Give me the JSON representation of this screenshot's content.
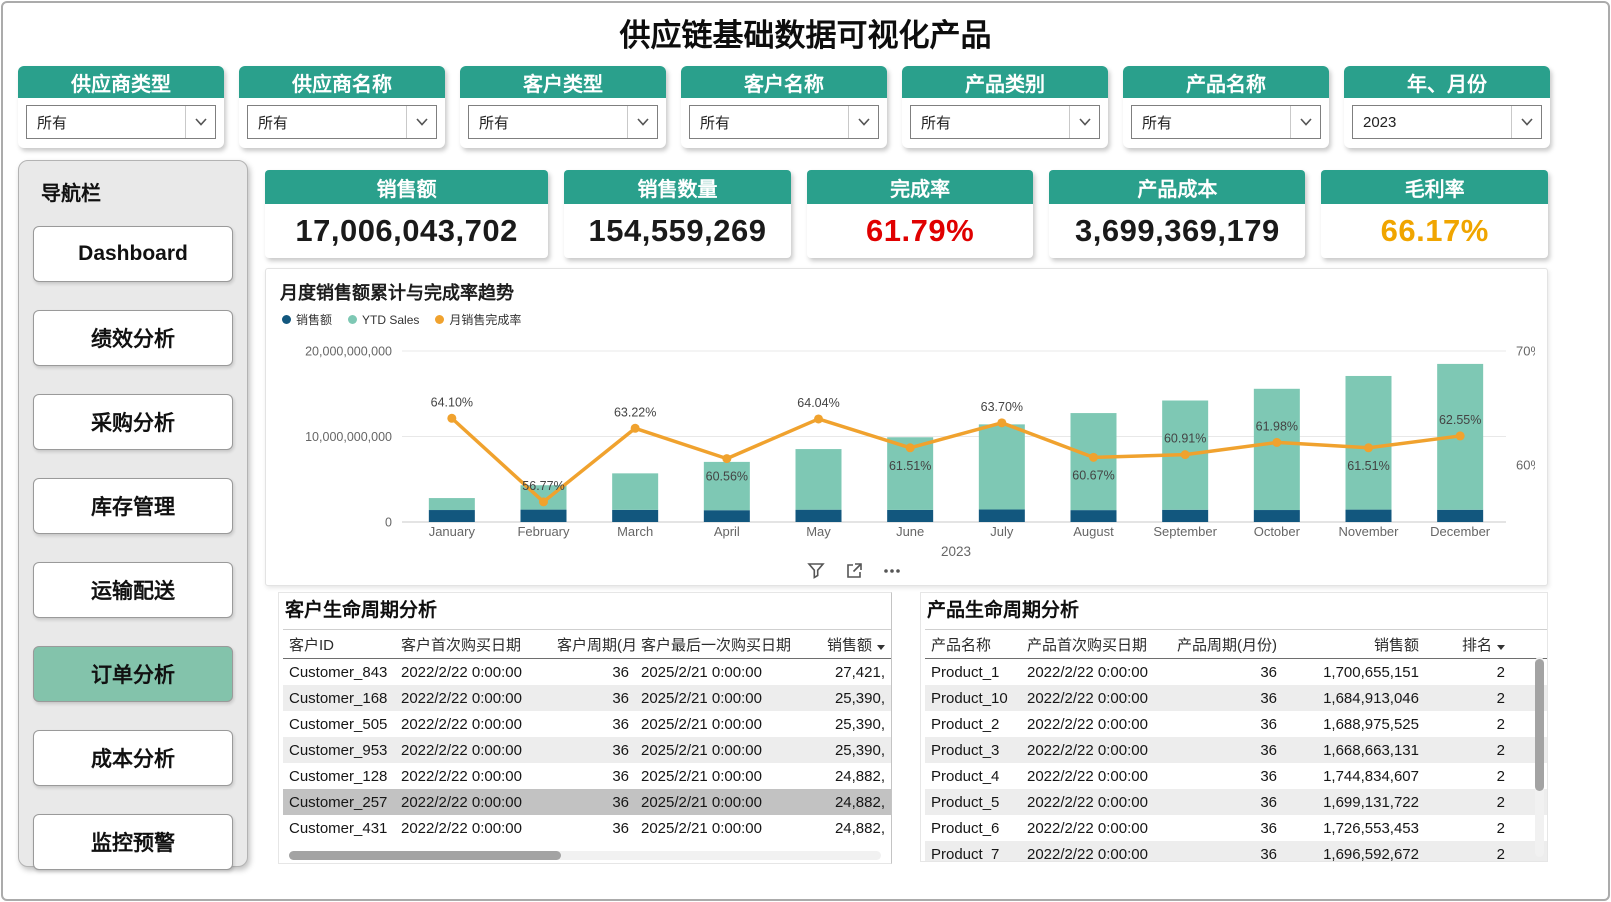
{
  "page": {
    "title": "供应链基础数据可视化产品"
  },
  "colors": {
    "teal_header": "#2AA08C",
    "nav_selected": "#83C3AB",
    "bar_blue": "#12577E",
    "bar_teal": "#7EC8B4",
    "line_orange": "#F0A22E",
    "kpi_red": "#E00000",
    "kpi_amber": "#F0A500",
    "row_alt": "#EDEDED",
    "row_selected": "#C2C2C2"
  },
  "filters": [
    {
      "name": "supplier-type",
      "label": "供应商类型",
      "value": "所有"
    },
    {
      "name": "supplier-name",
      "label": "供应商名称",
      "value": "所有"
    },
    {
      "name": "customer-type",
      "label": "客户类型",
      "value": "所有"
    },
    {
      "name": "customer-name",
      "label": "客户名称",
      "value": "所有"
    },
    {
      "name": "product-category",
      "label": "产品类别",
      "value": "所有"
    },
    {
      "name": "product-name",
      "label": "产品名称",
      "value": "所有"
    },
    {
      "name": "year-month",
      "label": "年、月份",
      "value": "2023"
    }
  ],
  "sidebar": {
    "title": "导航栏",
    "items": [
      {
        "name": "dashboard",
        "label": "Dashboard",
        "selected": false
      },
      {
        "name": "performance-analysis",
        "label": "绩效分析",
        "selected": false
      },
      {
        "name": "procurement-analysis",
        "label": "采购分析",
        "selected": false
      },
      {
        "name": "inventory-management",
        "label": "库存管理",
        "selected": false
      },
      {
        "name": "transport-delivery",
        "label": "运输配送",
        "selected": false
      },
      {
        "name": "order-analysis",
        "label": "订单分析",
        "selected": true
      },
      {
        "name": "cost-analysis",
        "label": "成本分析",
        "selected": false
      },
      {
        "name": "monitoring-alerts",
        "label": "监控预警",
        "selected": false
      }
    ]
  },
  "kpis": [
    {
      "name": "sales",
      "label": "销售额",
      "value": "17,006,043,702",
      "value_color": "#1a1a1a"
    },
    {
      "name": "sales-quantity",
      "label": "销售数量",
      "value": "154,559,269",
      "value_color": "#1a1a1a"
    },
    {
      "name": "completion-rate",
      "label": "完成率",
      "value": "61.79%",
      "value_color": "#E00000"
    },
    {
      "name": "product-cost",
      "label": "产品成本",
      "value": "3,699,369,179",
      "value_color": "#1a1a1a"
    },
    {
      "name": "gross-margin",
      "label": "毛利率",
      "value": "66.17%",
      "value_color": "#F0A500"
    }
  ],
  "chart_data": {
    "type": "combo",
    "title": "月度销售额累计与完成率趋势",
    "legend": [
      {
        "label": "销售额",
        "color": "#12577E"
      },
      {
        "label": "YTD Sales",
        "color": "#7EC8B4"
      },
      {
        "label": "月销售完成率",
        "color": "#F0A22E"
      }
    ],
    "categories": [
      "January",
      "February",
      "March",
      "April",
      "May",
      "June",
      "July",
      "August",
      "September",
      "October",
      "November",
      "December"
    ],
    "x_footer": "2023",
    "bar_series": [
      {
        "name": "销售额",
        "color": "#12577E",
        "values": [
          1400000000,
          1450000000,
          1420000000,
          1380000000,
          1440000000,
          1410000000,
          1460000000,
          1390000000,
          1430000000,
          1400000000,
          1450000000,
          1430000000
        ]
      },
      {
        "name": "YTD Sales",
        "color": "#7EC8B4",
        "values": [
          1400000000,
          2850000000,
          4270000000,
          5650000000,
          7090000000,
          8500000000,
          9960000000,
          11350000000,
          12780000000,
          14180000000,
          15630000000,
          17060000000
        ]
      }
    ],
    "line_series": {
      "name": "月销售完成率",
      "color": "#F0A22E",
      "values": [
        64.1,
        56.77,
        63.22,
        60.56,
        64.04,
        61.51,
        63.7,
        60.67,
        60.91,
        61.98,
        61.51,
        62.55
      ],
      "labels": [
        "64.10%",
        "56.77%",
        "63.22%",
        "60.56%",
        "64.04%",
        "61.51%",
        "63.70%",
        "60.67%",
        "60.91%",
        "61.98%",
        "61.51%",
        "62.55%"
      ],
      "label_side": [
        "above",
        "above",
        "above",
        "below",
        "above",
        "below",
        "above",
        "below",
        "above",
        "above",
        "below",
        "above"
      ]
    },
    "left_axis": {
      "min": 0,
      "max": 20000000000,
      "ticks": [
        {
          "v": 0,
          "label": "0"
        },
        {
          "v": 10000000000,
          "label": "10,000,000,000"
        },
        {
          "v": 20000000000,
          "label": "20,000,000,000"
        }
      ]
    },
    "right_axis": {
      "min": 55,
      "max": 70,
      "ticks": [
        {
          "v": 60,
          "label": "60%"
        },
        {
          "v": 70,
          "label": "70%"
        }
      ]
    },
    "grid": true,
    "legend_position": "top-left"
  },
  "chart_toolbar": {
    "icons": [
      "filter-icon",
      "focus-mode-icon",
      "more-options-icon"
    ]
  },
  "tables": {
    "customer": {
      "title": "客户生命周期分析",
      "columns": [
        "客户ID",
        "客户首次购买日期",
        "客户周期(月)",
        "客户最后一次购买日期",
        "销售额"
      ],
      "sorted_column": "销售额",
      "selected_row": 5,
      "rows": [
        [
          "Customer_843",
          "2022/2/22 0:00:00",
          "36",
          "2025/2/21 0:00:00",
          "27,421,"
        ],
        [
          "Customer_168",
          "2022/2/22 0:00:00",
          "36",
          "2025/2/21 0:00:00",
          "25,390,"
        ],
        [
          "Customer_505",
          "2022/2/22 0:00:00",
          "36",
          "2025/2/21 0:00:00",
          "25,390,"
        ],
        [
          "Customer_953",
          "2022/2/22 0:00:00",
          "36",
          "2025/2/21 0:00:00",
          "25,390,"
        ],
        [
          "Customer_128",
          "2022/2/22 0:00:00",
          "36",
          "2025/2/21 0:00:00",
          "24,882,"
        ],
        [
          "Customer_257",
          "2022/2/22 0:00:00",
          "36",
          "2025/2/21 0:00:00",
          "24,882,"
        ],
        [
          "Customer_431",
          "2022/2/22 0:00:00",
          "36",
          "2025/2/21 0:00:00",
          "24,882,"
        ]
      ]
    },
    "product": {
      "title": "产品生命周期分析",
      "columns": [
        "产品名称",
        "产品首次购买日期",
        "产品周期(月份)",
        "销售额",
        "排名"
      ],
      "sorted_column": "排名",
      "selected_row": -1,
      "rows": [
        [
          "Product_1",
          "2022/2/22 0:00:00",
          "36",
          "1,700,655,151",
          "2"
        ],
        [
          "Product_10",
          "2022/2/22 0:00:00",
          "36",
          "1,684,913,046",
          "2"
        ],
        [
          "Product_2",
          "2022/2/22 0:00:00",
          "36",
          "1,688,975,525",
          "2"
        ],
        [
          "Product_3",
          "2022/2/22 0:00:00",
          "36",
          "1,668,663,131",
          "2"
        ],
        [
          "Product_4",
          "2022/2/22 0:00:00",
          "36",
          "1,744,834,607",
          "2"
        ],
        [
          "Product_5",
          "2022/2/22 0:00:00",
          "36",
          "1,699,131,722",
          "2"
        ],
        [
          "Product_6",
          "2022/2/22 0:00:00",
          "36",
          "1,726,553,453",
          "2"
        ],
        [
          "Product_7",
          "2022/2/22 0:00:00",
          "36",
          "1,696,592,672",
          "2"
        ]
      ]
    }
  }
}
